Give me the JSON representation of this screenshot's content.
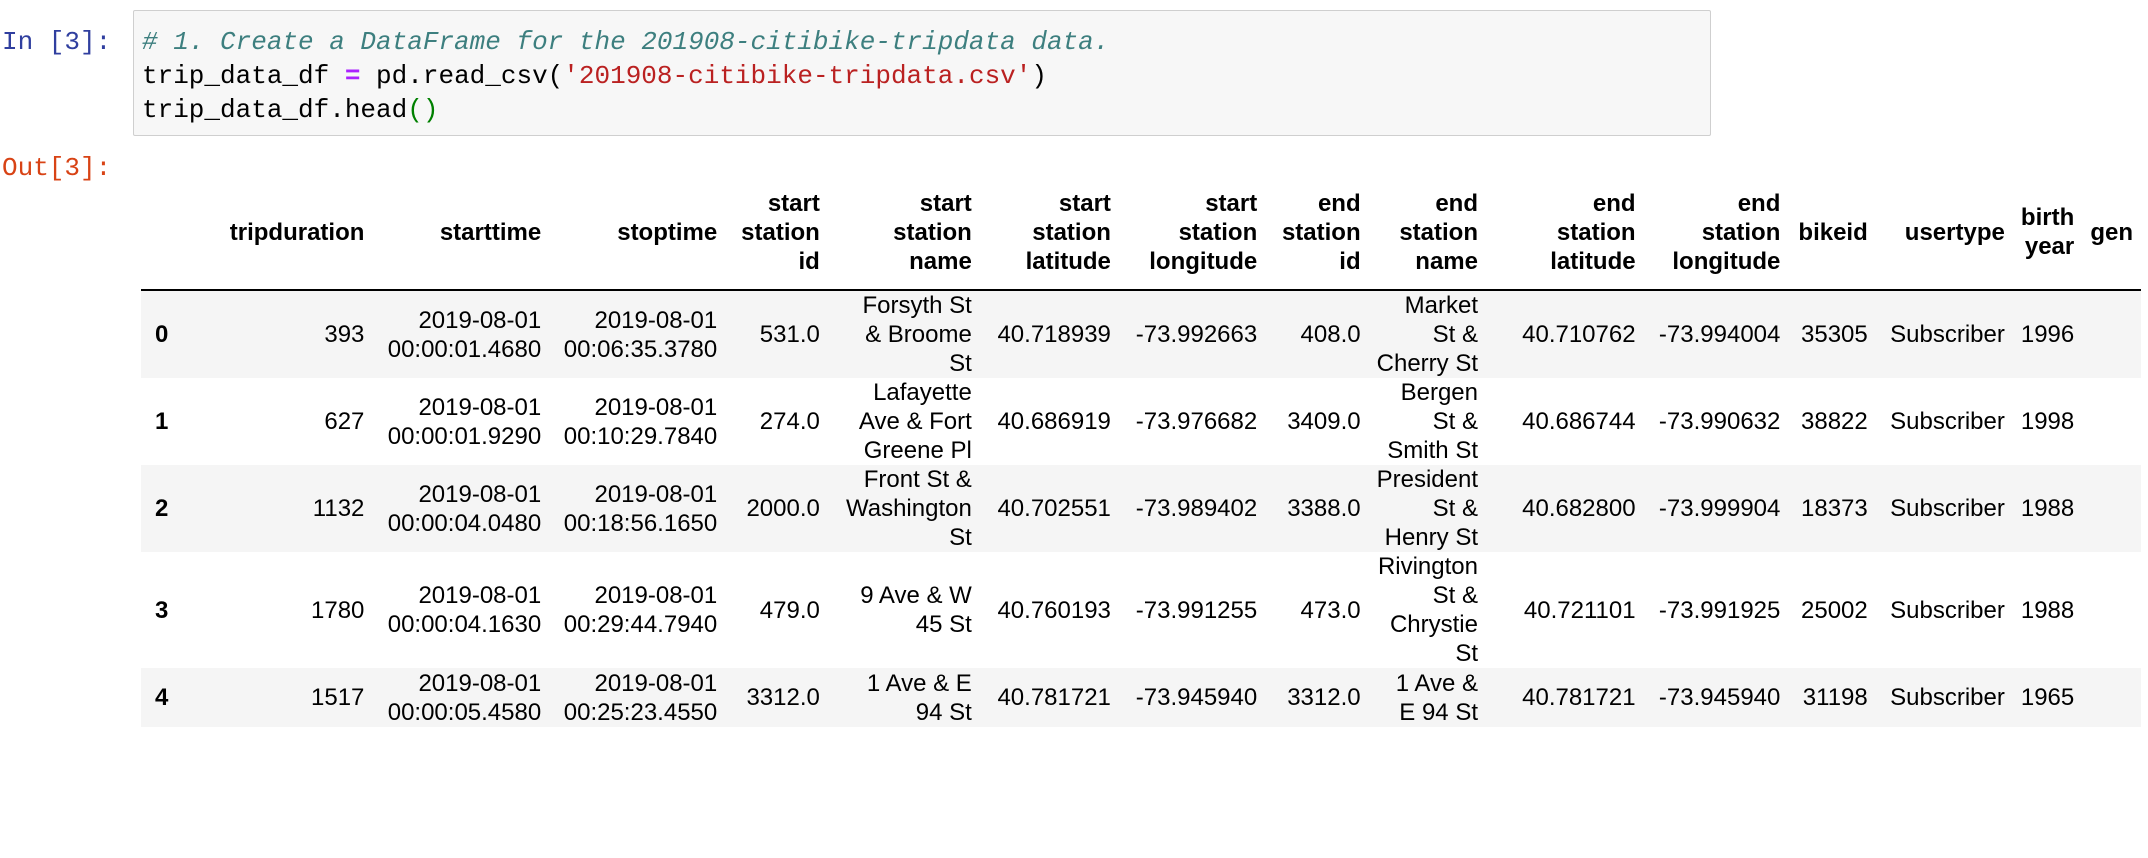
{
  "cell": {
    "in_prompt": "In [3]:",
    "out_prompt": "Out[3]:",
    "code": {
      "line1_comment": "# 1. Create a DataFrame for the 201908-citibike-tripdata data.",
      "line2_var": "trip_data_df ",
      "line2_op": "=",
      "line2_call": " pd.read_csv(",
      "line2_str": "'201908-citibike-tripdata.csv'",
      "line2_close": ")",
      "line3_call": "trip_data_df.head",
      "line3_parens": "()"
    }
  },
  "table": {
    "columns": [
      [
        "tripduration"
      ],
      [
        "starttime"
      ],
      [
        "stoptime"
      ],
      [
        "start",
        "station",
        "id"
      ],
      [
        "start",
        "station",
        "name"
      ],
      [
        "start",
        "station",
        "latitude"
      ],
      [
        "start",
        "station",
        "longitude"
      ],
      [
        "end",
        "station",
        "id"
      ],
      [
        "end",
        "station",
        "name"
      ],
      [
        "end",
        "station",
        "latitude"
      ],
      [
        "end",
        "station",
        "longitude"
      ],
      [
        "bikeid"
      ],
      [
        "usertype"
      ],
      [
        "birth",
        "year"
      ],
      [
        "gen"
      ]
    ],
    "rows": [
      {
        "index": "0",
        "cells": [
          [
            "393"
          ],
          [
            "2019-08-01",
            "00:00:01.4680"
          ],
          [
            "2019-08-01",
            "00:06:35.3780"
          ],
          [
            "531.0"
          ],
          [
            "Forsyth St",
            "& Broome",
            "St"
          ],
          [
            "40.718939"
          ],
          [
            "-73.992663"
          ],
          [
            "408.0"
          ],
          [
            "Market",
            "St &",
            "Cherry St"
          ],
          [
            "40.710762"
          ],
          [
            "-73.994004"
          ],
          [
            "35305"
          ],
          [
            "Subscriber"
          ],
          [
            "1996"
          ],
          [
            ""
          ]
        ]
      },
      {
        "index": "1",
        "cells": [
          [
            "627"
          ],
          [
            "2019-08-01",
            "00:00:01.9290"
          ],
          [
            "2019-08-01",
            "00:10:29.7840"
          ],
          [
            "274.0"
          ],
          [
            "Lafayette",
            "Ave & Fort",
            "Greene Pl"
          ],
          [
            "40.686919"
          ],
          [
            "-73.976682"
          ],
          [
            "3409.0"
          ],
          [
            "Bergen",
            "St &",
            "Smith St"
          ],
          [
            "40.686744"
          ],
          [
            "-73.990632"
          ],
          [
            "38822"
          ],
          [
            "Subscriber"
          ],
          [
            "1998"
          ],
          [
            ""
          ]
        ]
      },
      {
        "index": "2",
        "cells": [
          [
            "1132"
          ],
          [
            "2019-08-01",
            "00:00:04.0480"
          ],
          [
            "2019-08-01",
            "00:18:56.1650"
          ],
          [
            "2000.0"
          ],
          [
            "Front St &",
            "Washington",
            "St"
          ],
          [
            "40.702551"
          ],
          [
            "-73.989402"
          ],
          [
            "3388.0"
          ],
          [
            "President",
            "St &",
            "Henry St"
          ],
          [
            "40.682800"
          ],
          [
            "-73.999904"
          ],
          [
            "18373"
          ],
          [
            "Subscriber"
          ],
          [
            "1988"
          ],
          [
            ""
          ]
        ]
      },
      {
        "index": "3",
        "cells": [
          [
            "1780"
          ],
          [
            "2019-08-01",
            "00:00:04.1630"
          ],
          [
            "2019-08-01",
            "00:29:44.7940"
          ],
          [
            "479.0"
          ],
          [
            "9 Ave & W",
            "45 St"
          ],
          [
            "40.760193"
          ],
          [
            "-73.991255"
          ],
          [
            "473.0"
          ],
          [
            "Rivington",
            "St &",
            "Chrystie",
            "St"
          ],
          [
            "40.721101"
          ],
          [
            "-73.991925"
          ],
          [
            "25002"
          ],
          [
            "Subscriber"
          ],
          [
            "1988"
          ],
          [
            ""
          ]
        ]
      },
      {
        "index": "4",
        "cells": [
          [
            "1517"
          ],
          [
            "2019-08-01",
            "00:00:05.4580"
          ],
          [
            "2019-08-01",
            "00:25:23.4550"
          ],
          [
            "3312.0"
          ],
          [
            "1 Ave & E",
            "94 St"
          ],
          [
            "40.781721"
          ],
          [
            "-73.945940"
          ],
          [
            "3312.0"
          ],
          [
            "1 Ave &",
            "E 94 St"
          ],
          [
            "40.781721"
          ],
          [
            "-73.945940"
          ],
          [
            "31198"
          ],
          [
            "Subscriber"
          ],
          [
            "1965"
          ],
          [
            ""
          ]
        ]
      }
    ]
  }
}
